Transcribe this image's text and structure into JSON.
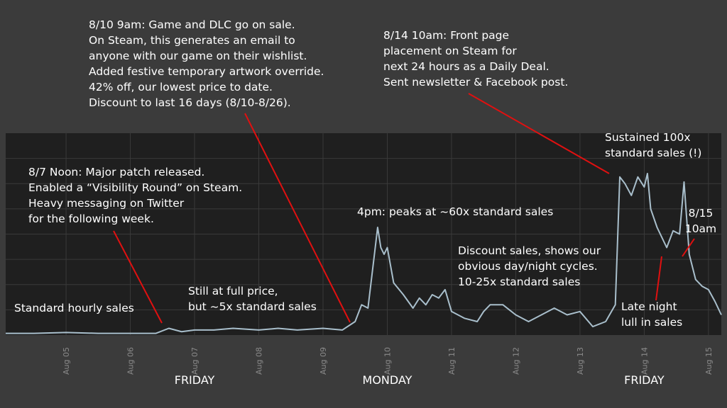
{
  "chart_data": {
    "type": "line",
    "x": [
      4.06,
      4.5,
      5.0,
      5.5,
      6.0,
      6.4,
      6.6,
      6.8,
      7.0,
      7.3,
      7.6,
      8.0,
      8.3,
      8.6,
      9.0,
      9.3,
      9.5,
      9.6,
      9.7,
      9.8,
      9.85,
      9.9,
      9.95,
      10.0,
      10.1,
      10.25,
      10.4,
      10.5,
      10.6,
      10.7,
      10.8,
      10.9,
      11.0,
      11.2,
      11.4,
      11.5,
      11.6,
      11.8,
      12.0,
      12.2,
      12.4,
      12.6,
      12.8,
      13.0,
      13.2,
      13.4,
      13.55,
      13.62,
      13.7,
      13.8,
      13.9,
      14.0,
      14.05,
      14.1,
      14.2,
      14.35,
      14.45,
      14.55,
      14.62,
      14.7,
      14.8,
      14.9,
      15.0,
      15.1,
      15.2
    ],
    "series": [
      {
        "color": "#a9bfcc",
        "values": [
          1,
          1,
          1.5,
          1,
          1,
          1,
          4,
          2,
          3,
          3,
          4,
          3,
          4,
          3,
          4,
          3,
          8,
          18,
          16,
          48,
          64,
          52,
          48,
          52,
          31,
          24,
          16,
          22,
          18,
          24,
          22,
          27,
          14,
          10,
          8,
          14,
          18,
          18,
          12,
          8,
          12,
          16,
          12,
          14,
          5,
          8,
          18,
          94,
          90,
          83,
          94,
          88,
          96,
          75,
          64,
          52,
          62,
          60,
          91,
          48,
          33,
          29,
          27,
          20,
          12
        ]
      }
    ],
    "xlim": [
      4.06,
      15.2
    ],
    "ylim": [
      0,
      120
    ],
    "xticks": [
      {
        "value": 5,
        "label": "Aug 05"
      },
      {
        "value": 6,
        "label": "Aug 06"
      },
      {
        "value": 7,
        "label": "Aug 07"
      },
      {
        "value": 8,
        "label": "Aug 08"
      },
      {
        "value": 9,
        "label": "Aug 09"
      },
      {
        "value": 10,
        "label": "Aug 10"
      },
      {
        "value": 11,
        "label": "Aug 11"
      },
      {
        "value": 12,
        "label": "Aug 12"
      },
      {
        "value": 13,
        "label": "Aug 13"
      },
      {
        "value": 14,
        "label": "Aug 14"
      },
      {
        "value": 15,
        "label": "Aug 15"
      }
    ],
    "yticks": [
      15,
      30,
      45,
      60,
      75,
      90,
      105
    ],
    "grid": true,
    "day_labels": [
      {
        "value": 7,
        "label": "FRIDAY"
      },
      {
        "value": 10,
        "label": "MONDAY"
      },
      {
        "value": 14,
        "label": "FRIDAY"
      }
    ],
    "annotations": [
      {
        "lines": [
          "8/10 9am: Game and DLC go on sale.",
          "On Steam, this generates an email to",
          "anyone with our game on their wishlist.",
          "Added festive temporary artwork override.",
          "42% off, our lowest price to date.",
          "Discount to last 16 days (8/10-8/26)."
        ]
      },
      {
        "lines": [
          "8/14 10am: Front page",
          "placement on Steam for",
          "next 24 hours as a Daily Deal.",
          "Sent newsletter & Facebook post."
        ]
      },
      {
        "lines": [
          "Sustained 100x",
          "standard sales (!)"
        ]
      },
      {
        "lines": [
          "8/7 Noon: Major patch released.",
          "Enabled a “Visibility Round” on Steam.",
          "Heavy messaging on Twitter",
          "for the following week."
        ]
      },
      {
        "lines": [
          "4pm: peaks at ~60x standard sales"
        ]
      },
      {
        "lines": [
          "8/15",
          "10am"
        ]
      },
      {
        "lines": [
          "Discount sales, shows our",
          "obvious day/night cycles.",
          "10-25x standard sales"
        ]
      },
      {
        "lines": [
          "Still at full price,",
          "but ~5x standard sales"
        ]
      },
      {
        "lines": [
          "Standard hourly sales"
        ]
      },
      {
        "lines": [
          "Late night",
          "lull in sales"
        ]
      }
    ]
  }
}
